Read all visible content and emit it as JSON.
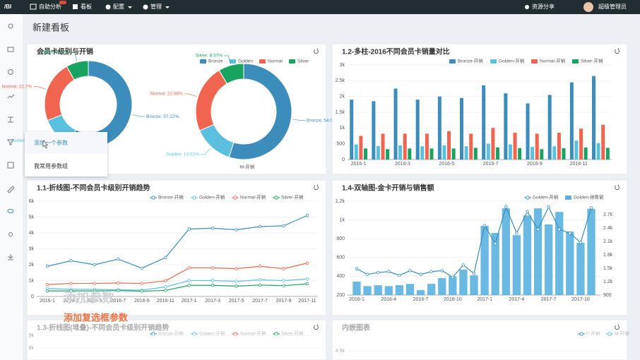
{
  "nav": {
    "logo": "/BI",
    "items": [
      "自助分析",
      "看板",
      "配置",
      "管理"
    ],
    "right": [
      "资源分享",
      "超级管理员"
    ]
  },
  "page_title": "新建看板",
  "menu": [
    "添加一个参数",
    "我常用参数组"
  ],
  "overlay": [
    "添加参数",
    "添加复选框参数"
  ],
  "charts": [
    {
      "type": "pie",
      "title": "会员卡级别与开销",
      "categories": [
        "Bronze",
        "Golden",
        "Normal",
        "Silver"
      ],
      "colors": [
        "#3c8dbc",
        "#5bc0de",
        "#f0654f",
        "#1aa260"
      ],
      "series": [
        {
          "name": "F-开销",
          "values": [
            57.22,
            11.86,
            22.7,
            8.22
          ],
          "value_labels": [
            "Bronze: 57.22%",
            "Golden: 11.86%",
            "Normal: 22.7%",
            "Silver: 8.22%"
          ]
        },
        {
          "name": "M-开销",
          "values": [
            54.96,
            13.51,
            22.96,
            8.57
          ],
          "value_labels": [
            "Bronze: 54.96%",
            "Golden: 13.51%",
            "Normal: 22.96%",
            "Silver: 8.57%"
          ]
        }
      ]
    },
    {
      "type": "bar",
      "title": "1.2-多柱-2016不同会员卡销量对比",
      "categories": [
        "2016-1",
        null,
        "2016-3",
        null,
        "2016-5",
        null,
        "2016-7",
        null,
        "2016-9",
        null,
        "2016-11",
        null
      ],
      "ylim": [
        0,
        3000
      ],
      "yticks": [
        0,
        500,
        {
          "value": 1000,
          "label": "1k"
        },
        {
          "value": 1500,
          "label": "1.5k"
        },
        {
          "value": 2000,
          "label": "2k"
        },
        {
          "value": 2500,
          "label": "2.5k"
        },
        {
          "value": 3000,
          "label": "3k"
        }
      ],
      "grid": true,
      "series": [
        {
          "name": "Bronze-开销",
          "color": "#3c8dbc",
          "values": [
            1900,
            1850,
            2250,
            1900,
            2000,
            1950,
            2350,
            2100,
            1780,
            2050,
            2450,
            2650
          ]
        },
        {
          "name": "Golden-开销",
          "color": "#5bc0de",
          "values": [
            480,
            430,
            450,
            420,
            450,
            420,
            500,
            480,
            400,
            420,
            600,
            520
          ]
        },
        {
          "name": "Normal-开销",
          "color": "#f0654f",
          "values": [
            750,
            820,
            820,
            820,
            900,
            820,
            1000,
            850,
            820,
            850,
            980,
            1100
          ]
        },
        {
          "name": "Silver-开销",
          "color": "#1aa260",
          "values": [
            350,
            330,
            350,
            350,
            350,
            370,
            380,
            360,
            330,
            360,
            380,
            370
          ]
        }
      ]
    },
    {
      "type": "line",
      "title": "1.1-折线图-不同会员卡级别开销趋势",
      "categories": [
        "2016-1",
        "2016-3",
        "2016-5",
        "2016-7",
        "2016-9",
        "2016-11",
        "2017-1",
        "2017-3",
        "2017-5",
        "2017-7",
        "2017-9",
        "2017-11"
      ],
      "ylim": [
        0,
        6000
      ],
      "yticks": [
        0,
        {
          "value": 1000,
          "label": "1k"
        },
        {
          "value": 2000,
          "label": "2k"
        },
        {
          "value": 3000,
          "label": "3k"
        },
        {
          "value": 4000,
          "label": "4k"
        },
        {
          "value": 5000,
          "label": "5k"
        },
        {
          "value": 6000,
          "label": "6k"
        }
      ],
      "grid": true,
      "series": [
        {
          "name": "Bronze-开销",
          "color": "#3c8dbc",
          "values": [
            1900,
            2250,
            2000,
            2350,
            1780,
            2450,
            4250,
            4300,
            4200,
            4400,
            4450,
            5100
          ]
        },
        {
          "name": "Golden-开销",
          "color": "#5bc0de",
          "values": [
            500,
            450,
            450,
            420,
            400,
            600,
            1000,
            1000,
            950,
            1050,
            1000,
            1100
          ]
        },
        {
          "name": "Normal-开销",
          "color": "#f0654f",
          "values": [
            750,
            820,
            820,
            850,
            820,
            980,
            1800,
            1800,
            1750,
            1900,
            1750,
            2100
          ]
        },
        {
          "name": "Silver-开销",
          "color": "#1aa260",
          "values": [
            350,
            350,
            350,
            370,
            330,
            380,
            700,
            700,
            650,
            720,
            680,
            800
          ]
        }
      ]
    },
    {
      "type": "dual",
      "title": "1.4-双轴图-金卡开销与销售额",
      "categories": [
        "2016-1",
        null,
        null,
        "2016-4",
        null,
        null,
        "2016-7",
        null,
        null,
        "2016-10",
        null,
        null,
        "2017-1",
        null,
        null,
        "2017-4",
        null,
        null,
        "2017-7",
        null,
        null,
        "2017-10",
        null
      ],
      "ylim": [
        200,
        1200
      ],
      "yticks": [
        200,
        400,
        600,
        800,
        {
          "value": 1000,
          "label": "1k"
        },
        {
          "value": 1200,
          "label": "1.2k"
        }
      ],
      "y2lim": [
        900,
        3000
      ],
      "y2ticks": [
        900,
        {
          "value": 1200,
          "label": "1.2k"
        },
        {
          "value": 1500,
          "label": "1.5k"
        },
        {
          "value": 1800,
          "label": "1.8k"
        },
        {
          "value": 2100,
          "label": "2.1k"
        },
        {
          "value": 2400,
          "label": "2.4k"
        },
        {
          "value": 2700,
          "label": "2.7k"
        }
      ],
      "grid": true,
      "series": [
        {
          "name": "Golden-开销",
          "color": "#3c8dbc",
          "values": [
            480,
            420,
            440,
            450,
            410,
            460,
            420,
            450,
            460,
            390,
            520,
            430,
            940,
            750,
            1140,
            860,
            1090,
            900,
            1140,
            900,
            860,
            760,
            1130
          ]
        },
        {
          "name": "Golden-销售额",
          "color": "#5ab1e0",
          "axis": "y2",
          "values": [
            1200,
            1100,
            1120,
            1100,
            1120,
            1150,
            1010,
            1150,
            1280,
            1320,
            1470,
            1340,
            2450,
            2290,
            2840,
            2240,
            2680,
            2840,
            2480,
            2760,
            2320,
            2070,
            2830
          ]
        }
      ]
    },
    {
      "type": "partial",
      "title": "1.3-折线图(堆叠)-不同会员卡级别开销趋势",
      "legend": [
        "Bronze-开销",
        "Golden-开销",
        "Normal-开销",
        "Silver-开销"
      ],
      "colors": [
        "#3c8dbc",
        "#5bc0de",
        "#f0654f",
        "#1aa260"
      ],
      "ylim": [
        0,
        9000
      ],
      "yticks": [
        {
          "value": 8000,
          "label": "8k"
        },
        {
          "value": 9000,
          "label": "9k"
        }
      ],
      "grid": true
    },
    {
      "type": "partial",
      "title": "内嵌图表",
      "legend": [
        "F-开销",
        "M-开销"
      ],
      "colors": [
        "#3c8dbc",
        "#5bc0de"
      ],
      "ylim": [
        0,
        5000
      ],
      "yticks": [
        {
          "value": 4500,
          "label": "4.5k"
        }
      ],
      "grid": true
    }
  ]
}
